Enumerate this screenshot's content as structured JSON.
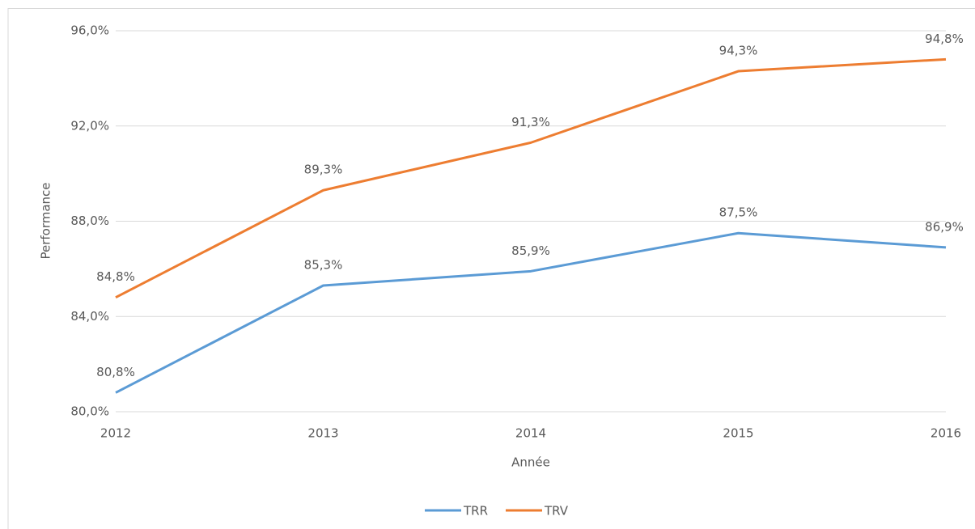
{
  "chart_data": {
    "type": "line",
    "x": [
      2012,
      2013,
      2014,
      2015,
      2016
    ],
    "xlim": [
      2012,
      2016
    ],
    "xticks": [
      2012,
      2013,
      2014,
      2015,
      2016
    ],
    "ylim": [
      80,
      96
    ],
    "yticks": [
      {
        "value": 80,
        "label": "80,0%"
      },
      {
        "value": 84,
        "label": "84,0%"
      },
      {
        "value": 88,
        "label": "88,0%"
      },
      {
        "value": 92,
        "label": "92,0%"
      },
      {
        "value": 96,
        "label": "96,0%"
      }
    ],
    "xlabel": "Année",
    "ylabel": "Performance",
    "grid": true,
    "legend": "bottom",
    "series": [
      {
        "name": "TRR",
        "color": "#5b9bd5",
        "values": [
          80.8,
          85.3,
          85.9,
          87.5,
          86.9
        ],
        "value_labels": [
          "80,8%",
          "85,3%",
          "85,9%",
          "87,5%",
          "86,9%"
        ]
      },
      {
        "name": "TRV",
        "color": "#ed7d31",
        "values": [
          84.8,
          89.3,
          91.3,
          94.3,
          94.8
        ],
        "value_labels": [
          "84,8%",
          "89,3%",
          "91,3%",
          "94,3%",
          "94,8%"
        ]
      }
    ]
  }
}
